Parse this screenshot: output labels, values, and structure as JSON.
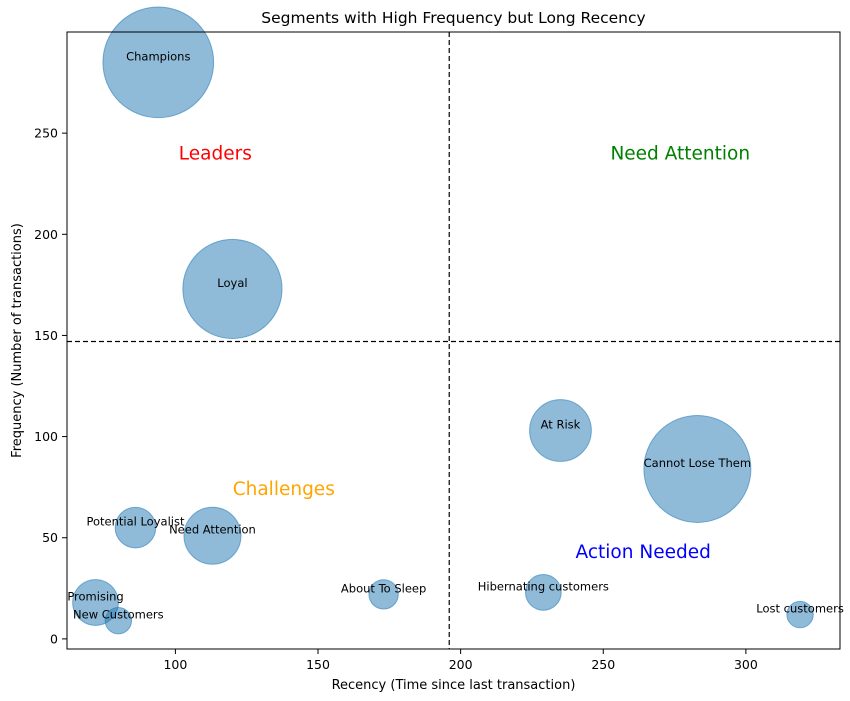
{
  "chart_data": {
    "type": "scatter",
    "title": "Segments with High Frequency but Long Recency",
    "xlabel": "Recency (Time since last transaction)",
    "ylabel": "Frequency (Number of transactions)",
    "xlim": [
      62,
      333
    ],
    "ylim": [
      -5,
      300
    ],
    "xticks": [
      100,
      150,
      200,
      250,
      300
    ],
    "yticks": [
      0,
      50,
      100,
      150,
      200,
      250
    ],
    "bubble_color": "#1f77b4",
    "bubble_alpha": 0.5,
    "grid": false,
    "threshold_lines": {
      "x": 196,
      "y": 147
    },
    "points": [
      {
        "label": "Champions",
        "x": 94,
        "y": 285,
        "size": 4.3
      },
      {
        "label": "Loyal",
        "x": 120,
        "y": 173,
        "size": 3.4
      },
      {
        "label": "At Risk",
        "x": 235,
        "y": 103,
        "size": 1.2
      },
      {
        "label": "Cannot Lose Them",
        "x": 283,
        "y": 84,
        "size": 4.0
      },
      {
        "label": "Potential Loyalist",
        "x": 86,
        "y": 55,
        "size": 0.45
      },
      {
        "label": "Need Attention",
        "x": 113,
        "y": 51,
        "size": 1.0
      },
      {
        "label": "Promising",
        "x": 72,
        "y": 18,
        "size": 0.6
      },
      {
        "label": "New Customers",
        "x": 80,
        "y": 9,
        "size": 0.15
      },
      {
        "label": "About To Sleep",
        "x": 173,
        "y": 22,
        "size": 0.2
      },
      {
        "label": "Hibernating customers",
        "x": 229,
        "y": 23,
        "size": 0.33
      },
      {
        "label": "Lost customers",
        "x": 319,
        "y": 12,
        "size": 0.15
      }
    ],
    "quadrant_labels": [
      {
        "text": "Leaders",
        "color": "#ff0000",
        "x": 114,
        "y": 240
      },
      {
        "text": "Need Attention",
        "color": "#008000",
        "x": 277,
        "y": 240
      },
      {
        "text": "Challenges",
        "color": "#ffa500",
        "x": 138,
        "y": 74
      },
      {
        "text": "Action Needed",
        "color": "#0000ff",
        "x": 264,
        "y": 43
      }
    ]
  }
}
